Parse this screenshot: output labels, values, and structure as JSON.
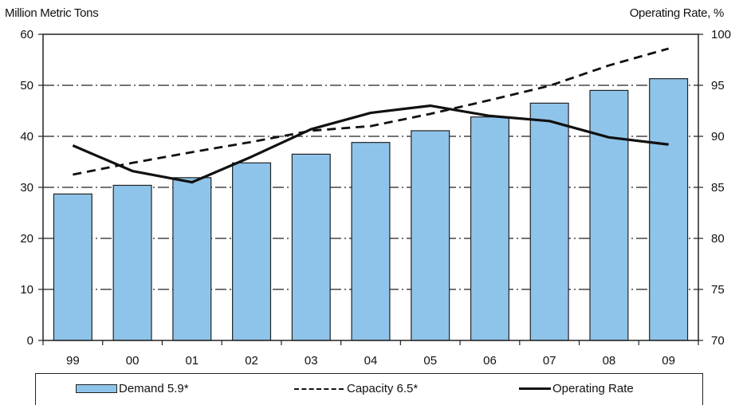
{
  "chart_data": {
    "type": "bar",
    "title": "",
    "left_axis_title": "Million Metric Tons",
    "right_axis_title": "Operating Rate, %",
    "categories": [
      "99",
      "00",
      "01",
      "02",
      "03",
      "04",
      "05",
      "06",
      "07",
      "08",
      "09"
    ],
    "left_ylim": [
      0,
      60
    ],
    "left_ticks": [
      0,
      10,
      20,
      30,
      40,
      50,
      60
    ],
    "right_ylim": [
      70,
      100
    ],
    "right_ticks": [
      70,
      75,
      80,
      85,
      90,
      95,
      100
    ],
    "grid": "dash-dot horizontal at left ticks 10-50",
    "series": [
      {
        "name": "Demand 5.9*",
        "type": "bar",
        "axis": "left",
        "color": "#8fc4ea",
        "values": [
          28.7,
          30.4,
          31.9,
          34.8,
          36.5,
          38.8,
          41.1,
          43.8,
          46.5,
          49.0,
          51.3
        ]
      },
      {
        "name": "Capacity 6.5*",
        "type": "line",
        "style": "dashed",
        "axis": "left",
        "values": [
          32.5,
          34.8,
          36.9,
          38.9,
          41.1,
          42.0,
          44.4,
          47.1,
          49.9,
          53.9,
          57.2
        ]
      },
      {
        "name": "Operating Rate",
        "type": "line",
        "style": "solid",
        "axis": "right",
        "values": [
          89.1,
          86.6,
          85.5,
          88.0,
          90.7,
          92.3,
          93.0,
          92.0,
          91.5,
          89.9,
          89.2
        ]
      }
    ],
    "legend_position": "bottom"
  }
}
